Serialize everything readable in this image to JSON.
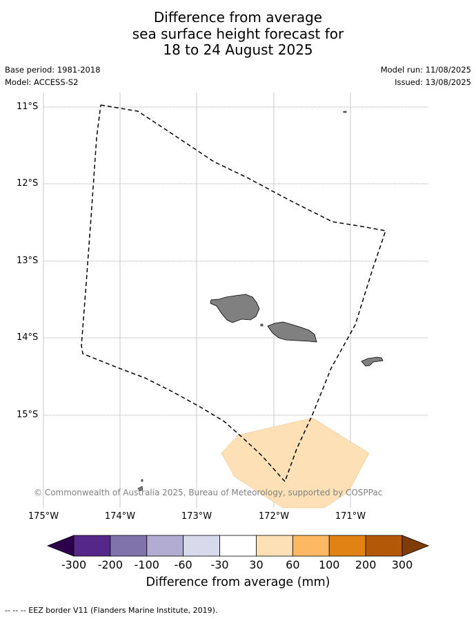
{
  "title": {
    "line1": "Difference from average",
    "line2": "sea surface height forecast for",
    "line3": "18 to 24 August 2025"
  },
  "meta": {
    "base_period": "Base period: 1981-2018",
    "model": "Model: ACCESS-S2",
    "model_run": "Model run: 11/08/2025",
    "issued": "Issued: 13/08/2025"
  },
  "axes": {
    "lat_labels": [
      "11°S",
      "12°S",
      "13°S",
      "14°S",
      "15°S"
    ],
    "lon_labels": [
      "175°W",
      "174°W",
      "173°W",
      "172°W",
      "171°W"
    ]
  },
  "copyright": "© Commonwealth of Australia 2025, Bureau of Meteorology, supported by COSPPac",
  "colorbar": {
    "title": "Difference from average (mm)",
    "ticks": [
      "-300",
      "-200",
      "-100",
      "-60",
      "-30",
      "30",
      "60",
      "100",
      "200",
      "300"
    ],
    "under_color": "#2d004b",
    "over_color": "#7f3b08",
    "colors": [
      "#542788",
      "#8073ac",
      "#b2abd2",
      "#d8daeb",
      "#ffffff",
      "#fee0b6",
      "#fdb863",
      "#e08214",
      "#b35806"
    ]
  },
  "map": {
    "land_color": "#808080",
    "anomaly_fill_color": "#fee0b6",
    "anomaly_fill_range": "30 to 60"
  },
  "footnote": "-- -- -- EEZ border V11 (Flanders Marine Institute, 2019)."
}
